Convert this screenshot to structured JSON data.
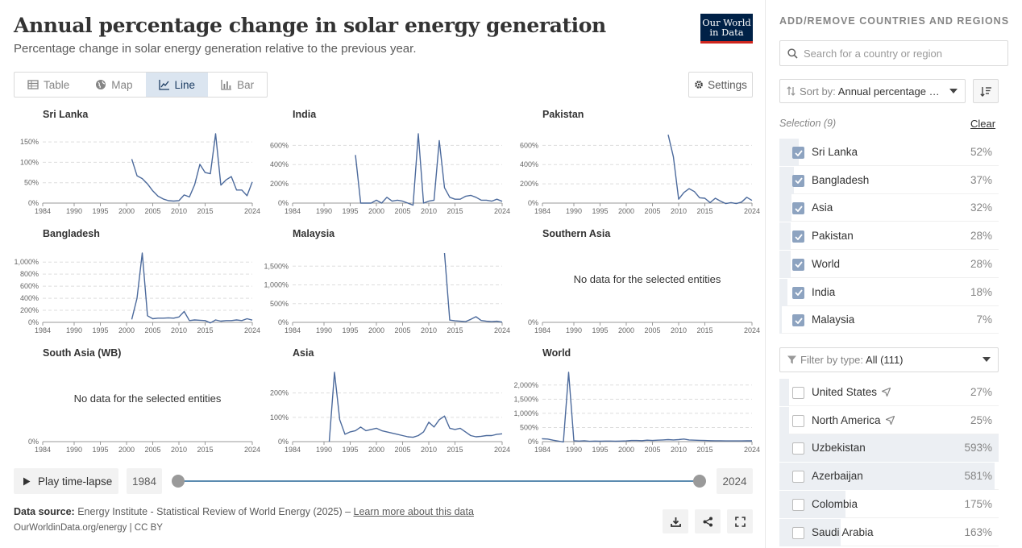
{
  "header": {
    "title": "Annual percentage change in solar energy generation",
    "subtitle": "Percentage change in solar energy generation relative to the previous year.",
    "logo_line1": "Our World",
    "logo_line2": "in Data"
  },
  "tabs": [
    {
      "label": "Table",
      "icon": "table-icon",
      "active": false
    },
    {
      "label": "Map",
      "icon": "globe-icon",
      "active": false
    },
    {
      "label": "Line",
      "icon": "line-chart-icon",
      "active": true
    },
    {
      "label": "Bar",
      "icon": "bar-chart-icon",
      "active": false
    }
  ],
  "settings_label": "Settings",
  "colors": {
    "accent": "#4c6a9c",
    "tab_active_bg": "#dbe5f0",
    "logo_bg": "#002147",
    "logo_stripe": "#ce261e"
  },
  "timeline": {
    "play_label": "Play time-lapse",
    "start_year": "1984",
    "end_year": "2024"
  },
  "footer": {
    "source_label": "Data source:",
    "source_text": "Energy Institute - Statistical Review of World Energy (2025) –",
    "learn_more": "Learn more about this data",
    "url": "OurWorldinData.org/energy | CC BY"
  },
  "chart_data": [
    {
      "type": "line",
      "title": "Sri Lanka",
      "xlim": [
        1984,
        2024
      ],
      "ylim": [
        0,
        170
      ],
      "yticks": [
        0,
        50,
        100,
        150
      ],
      "ytick_labels": [
        "0%",
        "50%",
        "100%",
        "150%"
      ],
      "xticks": [
        1984,
        1990,
        1995,
        2000,
        2005,
        2010,
        2015,
        2024
      ],
      "points": [
        [
          2001,
          108
        ],
        [
          2002,
          67
        ],
        [
          2003,
          60
        ],
        [
          2004,
          47
        ],
        [
          2005,
          30
        ],
        [
          2006,
          17
        ],
        [
          2007,
          10
        ],
        [
          2008,
          6
        ],
        [
          2009,
          5
        ],
        [
          2010,
          6
        ],
        [
          2011,
          20
        ],
        [
          2012,
          15
        ],
        [
          2013,
          45
        ],
        [
          2014,
          95
        ],
        [
          2015,
          75
        ],
        [
          2016,
          72
        ],
        [
          2017,
          170
        ],
        [
          2018,
          44
        ],
        [
          2019,
          57
        ],
        [
          2020,
          65
        ],
        [
          2021,
          32
        ],
        [
          2022,
          32
        ],
        [
          2023,
          18
        ],
        [
          2024,
          52
        ]
      ]
    },
    {
      "type": "line",
      "title": "India",
      "xlim": [
        1984,
        2024
      ],
      "ylim": [
        0,
        720
      ],
      "yticks": [
        0,
        200,
        400,
        600
      ],
      "ytick_labels": [
        "0%",
        "200%",
        "400%",
        "600%"
      ],
      "xticks": [
        1984,
        1990,
        1995,
        2000,
        2005,
        2010,
        2015,
        2024
      ],
      "points": [
        [
          1996,
          500
        ],
        [
          1997,
          0
        ],
        [
          1998,
          0
        ],
        [
          1999,
          0
        ],
        [
          2000,
          30
        ],
        [
          2001,
          0
        ],
        [
          2002,
          60
        ],
        [
          2003,
          20
        ],
        [
          2004,
          30
        ],
        [
          2005,
          20
        ],
        [
          2006,
          0
        ],
        [
          2007,
          -50
        ],
        [
          2008,
          720
        ],
        [
          2009,
          0
        ],
        [
          2010,
          20
        ],
        [
          2011,
          30
        ],
        [
          2012,
          650
        ],
        [
          2013,
          160
        ],
        [
          2014,
          60
        ],
        [
          2015,
          40
        ],
        [
          2016,
          40
        ],
        [
          2017,
          70
        ],
        [
          2018,
          80
        ],
        [
          2019,
          60
        ],
        [
          2020,
          30
        ],
        [
          2021,
          30
        ],
        [
          2022,
          20
        ],
        [
          2023,
          40
        ],
        [
          2024,
          18
        ]
      ]
    },
    {
      "type": "line",
      "title": "Pakistan",
      "xlim": [
        1984,
        2024
      ],
      "ylim": [
        0,
        720
      ],
      "yticks": [
        0,
        200,
        400,
        600
      ],
      "ytick_labels": [
        "0%",
        "200%",
        "400%",
        "600%"
      ],
      "xticks": [
        1984,
        1990,
        1995,
        2000,
        2005,
        2010,
        2015,
        2024
      ],
      "points": [
        [
          2008,
          710
        ],
        [
          2009,
          480
        ],
        [
          2010,
          40
        ],
        [
          2011,
          110
        ],
        [
          2012,
          150
        ],
        [
          2013,
          120
        ],
        [
          2014,
          55
        ],
        [
          2015,
          50
        ],
        [
          2016,
          5
        ],
        [
          2017,
          50
        ],
        [
          2018,
          20
        ],
        [
          2019,
          -5
        ],
        [
          2020,
          5
        ],
        [
          2021,
          -5
        ],
        [
          2022,
          10
        ],
        [
          2023,
          60
        ],
        [
          2024,
          28
        ]
      ]
    },
    {
      "type": "line",
      "title": "Bangladesh",
      "xlim": [
        1984,
        2024
      ],
      "ylim": [
        0,
        1150
      ],
      "yticks": [
        0,
        200,
        400,
        600,
        800,
        1000
      ],
      "ytick_labels": [
        "0%",
        "200%",
        "400%",
        "600%",
        "800%",
        "1,000%"
      ],
      "xticks": [
        1984,
        1990,
        1995,
        2000,
        2005,
        2010,
        2015,
        2024
      ],
      "points": [
        [
          2001,
          50
        ],
        [
          2002,
          400
        ],
        [
          2003,
          1150
        ],
        [
          2004,
          110
        ],
        [
          2005,
          60
        ],
        [
          2006,
          70
        ],
        [
          2007,
          70
        ],
        [
          2008,
          75
        ],
        [
          2009,
          70
        ],
        [
          2010,
          90
        ],
        [
          2011,
          180
        ],
        [
          2012,
          30
        ],
        [
          2013,
          40
        ],
        [
          2014,
          35
        ],
        [
          2015,
          30
        ],
        [
          2016,
          -10
        ],
        [
          2017,
          40
        ],
        [
          2018,
          20
        ],
        [
          2019,
          30
        ],
        [
          2020,
          30
        ],
        [
          2021,
          40
        ],
        [
          2022,
          30
        ],
        [
          2023,
          60
        ],
        [
          2024,
          37
        ]
      ]
    },
    {
      "type": "line",
      "title": "Malaysia",
      "xlim": [
        1984,
        2024
      ],
      "ylim": [
        0,
        1850
      ],
      "yticks": [
        0,
        500,
        1000,
        1500
      ],
      "ytick_labels": [
        "0%",
        "500%",
        "1,000%",
        "1,500%"
      ],
      "xticks": [
        1984,
        1990,
        1995,
        2000,
        2005,
        2010,
        2015,
        2024
      ],
      "points": [
        [
          2013,
          1850
        ],
        [
          2014,
          60
        ],
        [
          2015,
          40
        ],
        [
          2016,
          30
        ],
        [
          2017,
          20
        ],
        [
          2018,
          80
        ],
        [
          2019,
          150
        ],
        [
          2020,
          50
        ],
        [
          2021,
          30
        ],
        [
          2022,
          20
        ],
        [
          2023,
          30
        ],
        [
          2024,
          7
        ]
      ]
    },
    {
      "type": "line",
      "title": "Southern Asia",
      "xlim": [
        1984,
        2024
      ],
      "ylim": [
        0,
        1
      ],
      "yticks": [
        0
      ],
      "ytick_labels": [
        "0%"
      ],
      "xticks": [
        1984,
        1990,
        1995,
        2000,
        2005,
        2010,
        2015,
        2024
      ],
      "points": [],
      "message": "No data for the selected entities"
    },
    {
      "type": "line",
      "title": "South Asia (WB)",
      "xlim": [
        1984,
        2024
      ],
      "ylim": [
        0,
        1
      ],
      "yticks": [
        0
      ],
      "ytick_labels": [
        "0%"
      ],
      "xticks": [
        1984,
        1990,
        1995,
        2000,
        2005,
        2010,
        2015,
        2024
      ],
      "points": [],
      "message": "No data for the selected entities"
    },
    {
      "type": "line",
      "title": "Asia",
      "xlim": [
        1984,
        2024
      ],
      "ylim": [
        0,
        285
      ],
      "yticks": [
        0,
        100,
        200
      ],
      "ytick_labels": [
        "0%",
        "100%",
        "200%"
      ],
      "xticks": [
        1984,
        1990,
        1995,
        2000,
        2005,
        2010,
        2015,
        2024
      ],
      "points": [
        [
          1991,
          0
        ],
        [
          1992,
          285
        ],
        [
          1993,
          90
        ],
        [
          1994,
          30
        ],
        [
          1995,
          40
        ],
        [
          1996,
          45
        ],
        [
          1997,
          60
        ],
        [
          1998,
          45
        ],
        [
          1999,
          50
        ],
        [
          2000,
          55
        ],
        [
          2001,
          45
        ],
        [
          2002,
          40
        ],
        [
          2003,
          35
        ],
        [
          2004,
          30
        ],
        [
          2005,
          25
        ],
        [
          2006,
          20
        ],
        [
          2007,
          18
        ],
        [
          2008,
          25
        ],
        [
          2009,
          40
        ],
        [
          2010,
          80
        ],
        [
          2011,
          60
        ],
        [
          2012,
          90
        ],
        [
          2013,
          105
        ],
        [
          2014,
          55
        ],
        [
          2015,
          50
        ],
        [
          2016,
          55
        ],
        [
          2017,
          40
        ],
        [
          2018,
          25
        ],
        [
          2019,
          20
        ],
        [
          2020,
          22
        ],
        [
          2021,
          25
        ],
        [
          2022,
          25
        ],
        [
          2023,
          30
        ],
        [
          2024,
          32
        ]
      ]
    },
    {
      "type": "line",
      "title": "World",
      "xlim": [
        1984,
        2024
      ],
      "ylim": [
        0,
        2450
      ],
      "yticks": [
        0,
        500,
        1000,
        1500,
        2000
      ],
      "ytick_labels": [
        "0%",
        "500%",
        "1,000%",
        "1,500%",
        "2,000%"
      ],
      "xticks": [
        1984,
        1990,
        1995,
        2000,
        2005,
        2010,
        2015,
        2024
      ],
      "points": [
        [
          1983,
          120
        ],
        [
          1984,
          100
        ],
        [
          1985,
          90
        ],
        [
          1986,
          50
        ],
        [
          1987,
          20
        ],
        [
          1988,
          -10
        ],
        [
          1989,
          2450
        ],
        [
          1990,
          30
        ],
        [
          1991,
          20
        ],
        [
          1992,
          30
        ],
        [
          1993,
          10
        ],
        [
          1994,
          20
        ],
        [
          1995,
          15
        ],
        [
          1996,
          20
        ],
        [
          1997,
          20
        ],
        [
          1998,
          15
        ],
        [
          1999,
          20
        ],
        [
          2000,
          25
        ],
        [
          2001,
          40
        ],
        [
          2002,
          40
        ],
        [
          2003,
          35
        ],
        [
          2004,
          50
        ],
        [
          2005,
          40
        ],
        [
          2006,
          50
        ],
        [
          2007,
          60
        ],
        [
          2008,
          70
        ],
        [
          2009,
          60
        ],
        [
          2010,
          70
        ],
        [
          2011,
          90
        ],
        [
          2012,
          60
        ],
        [
          2013,
          50
        ],
        [
          2014,
          45
        ],
        [
          2015,
          40
        ],
        [
          2016,
          35
        ],
        [
          2017,
          30
        ],
        [
          2018,
          30
        ],
        [
          2019,
          25
        ],
        [
          2020,
          25
        ],
        [
          2021,
          25
        ],
        [
          2022,
          25
        ],
        [
          2023,
          28
        ],
        [
          2024,
          28
        ]
      ]
    }
  ],
  "sidebar": {
    "header": "ADD/REMOVE COUNTRIES AND REGIONS",
    "search_placeholder": "Search for a country or region",
    "sort_label": "Sort by:",
    "sort_value": "Annual percentage change in solar energy generation",
    "selection_label": "Selection (9)",
    "clear_label": "Clear",
    "selected": [
      {
        "name": "Sri Lanka",
        "value": "52%",
        "fraction": 0.09
      },
      {
        "name": "Bangladesh",
        "value": "37%",
        "fraction": 0.065
      },
      {
        "name": "Asia",
        "value": "32%",
        "fraction": 0.055
      },
      {
        "name": "Pakistan",
        "value": "28%",
        "fraction": 0.05
      },
      {
        "name": "World",
        "value": "28%",
        "fraction": 0.05
      },
      {
        "name": "India",
        "value": "18%",
        "fraction": 0.035
      },
      {
        "name": "Malaysia",
        "value": "7%",
        "fraction": 0.012
      }
    ],
    "filter_label": "Filter by type:",
    "filter_value": "All (111)",
    "others": [
      {
        "name": "United States",
        "value": "27%",
        "fraction": 0.045,
        "arrow": true
      },
      {
        "name": "North America",
        "value": "25%",
        "fraction": 0.043,
        "arrow": true
      },
      {
        "name": "Uzbekistan",
        "value": "593%",
        "fraction": 1.0,
        "arrow": false
      },
      {
        "name": "Azerbaijan",
        "value": "581%",
        "fraction": 0.98,
        "arrow": false
      },
      {
        "name": "Colombia",
        "value": "175%",
        "fraction": 0.3,
        "arrow": false
      },
      {
        "name": "Saudi Arabia",
        "value": "163%",
        "fraction": 0.28,
        "arrow": false
      }
    ]
  }
}
